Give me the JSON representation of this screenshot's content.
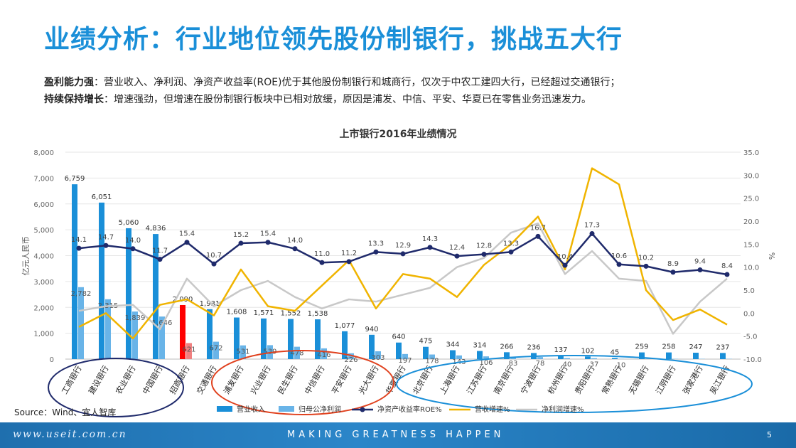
{
  "title": "业绩分析：行业地位领先股份制银行，挑战五大行",
  "description": {
    "line1_bold": "盈利能力强",
    "line1_text": "：营业收入、净利润、净资产收益率(ROE)优于其他股份制银行和城商行，仅次于中农工建四大行，已经超过交通银行；",
    "line2_bold": "持续保持增长",
    "line2_text": "：增速强劲，但增速在股份制银行板块中已相对放缓，原因是浦发、中信、平安、华夏已在零售业务迅速发力。"
  },
  "source": "Source：Wind、宜人智库",
  "footer": {
    "site": "www.useit.com.cn",
    "slogan": "MAKING GREATNESS HAPPEN",
    "page": "5"
  },
  "colors": {
    "revenue": "#1a8fd8",
    "profit": "#69b4e8",
    "highlight": "#ff0000",
    "roe": "#1f2a6b",
    "rev_growth": "#f0b400",
    "profit_growth": "#c8c8c8",
    "circle_big4": "#1f2a6b",
    "circle_joint": "#e0411e",
    "circle_city": "#1a8fd8"
  },
  "chart_data": {
    "type": "bar",
    "title": "上市银行2016年业绩情况",
    "ylabel": "亿元人民币",
    "y2label": "%",
    "ylim": [
      0,
      8000
    ],
    "y2lim": [
      -10,
      35
    ],
    "yticks": [
      "0",
      "1,000",
      "2,000",
      "3,000",
      "4,000",
      "5,000",
      "6,000",
      "7,000",
      "8,000"
    ],
    "y2ticks": [
      "-10.0",
      "-5.0",
      "0.0",
      "5.0",
      "10.0",
      "15.0",
      "20.0",
      "25.0",
      "30.0",
      "35.0"
    ],
    "legend_position": "bottom",
    "highlight_index": 4,
    "categories": [
      "工商银行",
      "建设银行",
      "农业银行",
      "中国银行",
      "招商银行",
      "交通银行",
      "浦发银行",
      "兴业银行",
      "民生银行",
      "中信银行",
      "平安银行",
      "光大银行",
      "华夏银行",
      "北京银行",
      "上海银行",
      "江苏银行",
      "南京银行",
      "宁波银行",
      "杭州银行",
      "贵阳银行",
      "常熟银行",
      "无锡银行",
      "江阴银行",
      "张家港行",
      "吴江银行"
    ],
    "series": [
      {
        "name": "营业收入",
        "type": "bar",
        "values": [
          6759,
          6051,
          5060,
          4836,
          2090,
          1931,
          1608,
          1571,
          1552,
          1538,
          1077,
          940,
          640,
          475,
          344,
          314,
          266,
          236,
          137,
          102,
          45,
          259,
          258,
          247,
          237
        ],
        "labels": [
          "6,759",
          "6,051",
          "5,060",
          "4,836",
          "2,090",
          "1,931",
          "1,608",
          "1,571",
          "1,552",
          "1,538",
          "1,077",
          "940",
          "640",
          "475",
          "344",
          "314",
          "266",
          "236",
          "137",
          "102",
          "45",
          "259",
          "258",
          "247",
          "237"
        ]
      },
      {
        "name": "归母公净利润",
        "type": "bar",
        "values": [
          2782,
          2315,
          1839,
          1646,
          621,
          672,
          531,
          539,
          478,
          416,
          226,
          303,
          197,
          178,
          143,
          106,
          83,
          78,
          40,
          37,
          10,
          10,
          10,
          10,
          10
        ],
        "labels": [
          "2,782",
          "2,315",
          "1,839",
          "1,646",
          "621",
          "672",
          "531",
          "539",
          "478",
          "416",
          "226",
          "303",
          "197",
          "178",
          "143",
          "106",
          "83",
          "78",
          "40",
          "37",
          "10",
          "",
          "",
          "",
          ""
        ]
      },
      {
        "name": "净资产收益率ROE%",
        "type": "line",
        "axis": "right",
        "values": [
          14.1,
          14.7,
          14.0,
          11.7,
          15.4,
          10.7,
          15.2,
          15.4,
          14.0,
          11.0,
          11.2,
          13.3,
          12.9,
          14.3,
          12.4,
          12.8,
          13.3,
          16.7,
          10.4,
          17.3,
          10.6,
          10.2,
          8.9,
          9.4,
          8.4
        ],
        "labels": [
          "14.1",
          "14.7",
          "14.0",
          "11.7",
          "15.4",
          "10.7",
          "15.2",
          "15.4",
          "14.0",
          "11.0",
          "11.2",
          "13.3",
          "12.9",
          "14.3",
          "12.4",
          "12.8",
          "13.3",
          "16.7",
          "10.4",
          "17.3",
          "10.6",
          "10.2",
          "8.9",
          "9.4",
          "8.4"
        ]
      },
      {
        "name": "营收增速%",
        "type": "line",
        "axis": "right",
        "values": [
          -3.0,
          0.0,
          -5.5,
          1.8,
          3.0,
          -0.5,
          9.5,
          1.5,
          0.5,
          6.0,
          11.5,
          1.0,
          8.5,
          7.5,
          3.5,
          10.5,
          15.0,
          21.0,
          9.5,
          31.5,
          28.0,
          5.0,
          -1.5,
          0.8,
          -2.5
        ]
      },
      {
        "name": "净利润增速%",
        "type": "line",
        "axis": "right",
        "values": [
          0.5,
          1.5,
          1.8,
          -3.5,
          7.5,
          1.5,
          5.0,
          7.0,
          3.5,
          1.0,
          3.0,
          2.5,
          4.0,
          5.5,
          10.0,
          12.0,
          17.5,
          19.5,
          8.5,
          13.5,
          7.5,
          7.0,
          -4.5,
          2.5,
          7.5
        ]
      }
    ]
  }
}
